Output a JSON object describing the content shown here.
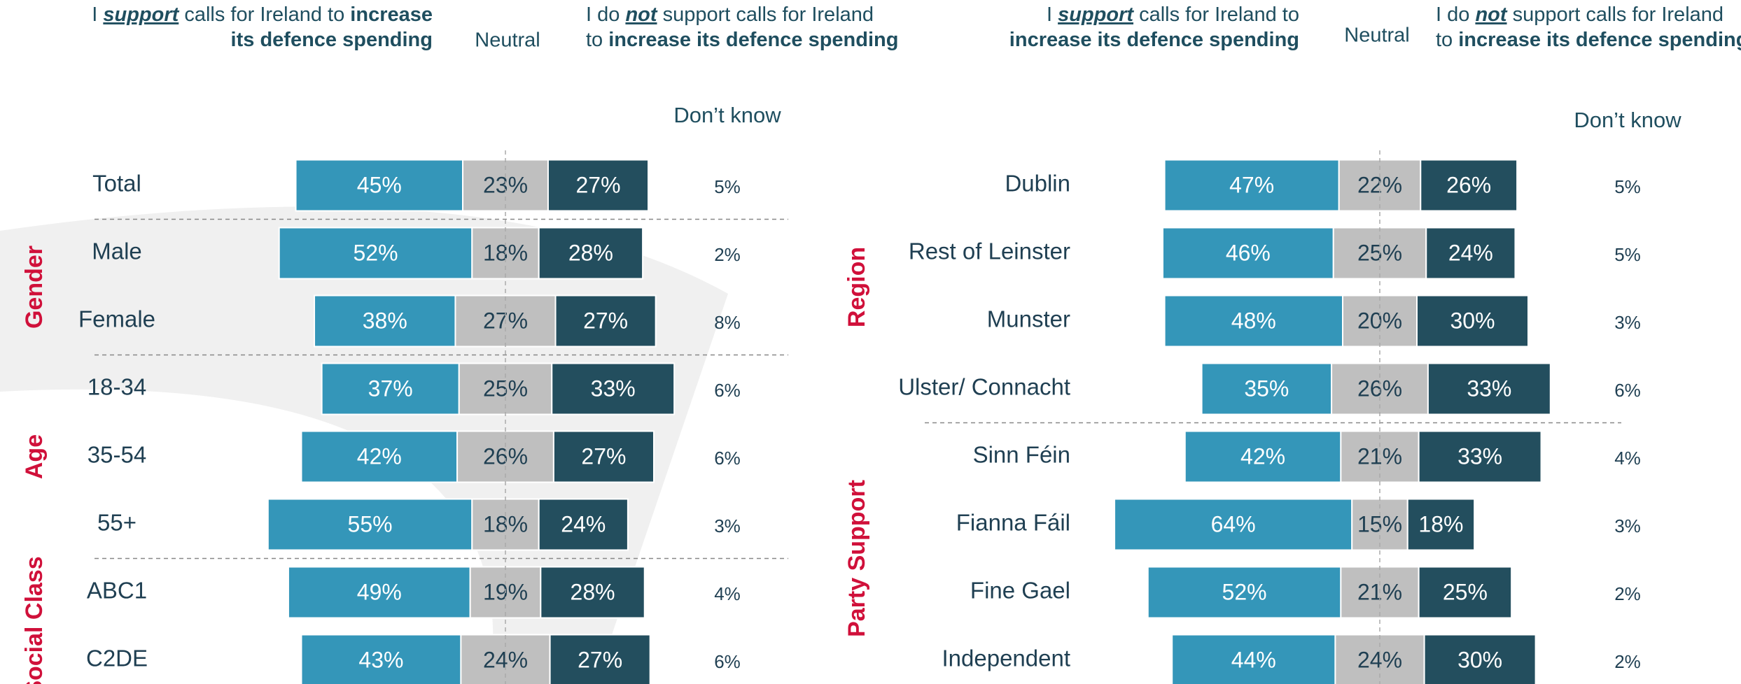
{
  "chart_data": [
    {
      "type": "diverging-bar",
      "headers": {
        "support": [
          [
            {
              "text": "I ",
              "style": "plain"
            },
            {
              "text": "support",
              "style": "bold-italic-underline"
            },
            {
              "text": " calls for Ireland to ",
              "style": "plain"
            },
            {
              "text": "increase",
              "style": "bold"
            }
          ],
          [
            {
              "text": "its defence spending",
              "style": "bold"
            }
          ]
        ],
        "neutral": "Neutral",
        "not_support": [
          [
            {
              "text": "I do ",
              "style": "plain"
            },
            {
              "text": "not",
              "style": "bold-italic-underline"
            },
            {
              "text": " support calls for Ireland",
              "style": "plain"
            }
          ],
          [
            {
              "text": "to ",
              "style": "plain"
            },
            {
              "text": "increase its defence spending",
              "style": "bold"
            }
          ]
        ],
        "dont_know": "Don’t know"
      },
      "categories": [
        "Total",
        "Male",
        "Female",
        "18-34",
        "35-54",
        "55+",
        "ABC1",
        "C2DE"
      ],
      "category_groups": [
        null,
        "Gender",
        "Gender",
        "Age",
        "Age",
        "Age",
        "Social Class",
        "Social Class"
      ],
      "series": [
        {
          "key": "support",
          "color": "#3496b9",
          "values": [
            45,
            52,
            38,
            37,
            42,
            55,
            49,
            43
          ],
          "value_labels": [
            "45%",
            "52%",
            "38%",
            "37%",
            "42%",
            "55%",
            "49%",
            "43%"
          ]
        },
        {
          "key": "neutral",
          "color": "#bfbfbf",
          "values": [
            23,
            18,
            27,
            25,
            26,
            18,
            19,
            24
          ],
          "value_labels": [
            "23%",
            "18%",
            "27%",
            "25%",
            "26%",
            "18%",
            "19%",
            "24%"
          ]
        },
        {
          "key": "not_support",
          "color": "#234e5e",
          "values": [
            27,
            28,
            27,
            33,
            27,
            24,
            28,
            27
          ],
          "value_labels": [
            "27%",
            "28%",
            "27%",
            "33%",
            "27%",
            "24%",
            "28%",
            "27%"
          ]
        },
        {
          "key": "dont_know",
          "color": "#1f3f52",
          "values": [
            5,
            2,
            8,
            6,
            6,
            3,
            4,
            6
          ],
          "value_labels": [
            "5%",
            "2%",
            "8%",
            "6%",
            "6%",
            "3%",
            "4%",
            "6%"
          ]
        }
      ]
    },
    {
      "type": "diverging-bar",
      "headers": {
        "support": [
          [
            {
              "text": "I ",
              "style": "plain"
            },
            {
              "text": "support",
              "style": "bold-italic-underline"
            },
            {
              "text": " calls for Ireland to",
              "style": "plain"
            }
          ],
          [
            {
              "text": "increase its defence spending",
              "style": "bold"
            }
          ]
        ],
        "neutral": "Neutral",
        "not_support": [
          [
            {
              "text": "I do ",
              "style": "plain"
            },
            {
              "text": "not",
              "style": "bold-italic-underline"
            },
            {
              "text": " support calls for Ireland",
              "style": "plain"
            }
          ],
          [
            {
              "text": "to ",
              "style": "plain"
            },
            {
              "text": "increase its defence spending",
              "style": "bold"
            }
          ]
        ],
        "dont_know": "Don’t know"
      },
      "categories": [
        "Dublin",
        "Rest of Leinster",
        "Munster",
        "Ulster/ Connacht",
        "Sinn Féin",
        "Fianna Fáil",
        "Fine Gael",
        "Independent"
      ],
      "category_groups": [
        "Region",
        "Region",
        "Region",
        "Region",
        "Party Support",
        "Party Support",
        "Party Support",
        "Party Support"
      ],
      "series": [
        {
          "key": "support",
          "color": "#3496b9",
          "values": [
            47,
            46,
            48,
            35,
            42,
            64,
            52,
            44
          ],
          "value_labels": [
            "47%",
            "46%",
            "48%",
            "35%",
            "42%",
            "64%",
            "52%",
            "44%"
          ]
        },
        {
          "key": "neutral",
          "color": "#bfbfbf",
          "values": [
            22,
            25,
            20,
            26,
            21,
            15,
            21,
            24
          ],
          "value_labels": [
            "22%",
            "25%",
            "20%",
            "26%",
            "21%",
            "15%",
            "21%",
            "24%"
          ]
        },
        {
          "key": "not_support",
          "color": "#234e5e",
          "values": [
            26,
            24,
            30,
            33,
            33,
            18,
            25,
            30
          ],
          "value_labels": [
            "26%",
            "24%",
            "30%",
            "33%",
            "33%",
            "18%",
            "25%",
            "30%"
          ]
        },
        {
          "key": "dont_know",
          "color": "#1f3f52",
          "values": [
            5,
            5,
            3,
            6,
            4,
            3,
            2,
            2
          ],
          "value_labels": [
            "5%",
            "5%",
            "3%",
            "6%",
            "4%",
            "3%",
            "2%",
            "2%"
          ]
        }
      ]
    }
  ]
}
